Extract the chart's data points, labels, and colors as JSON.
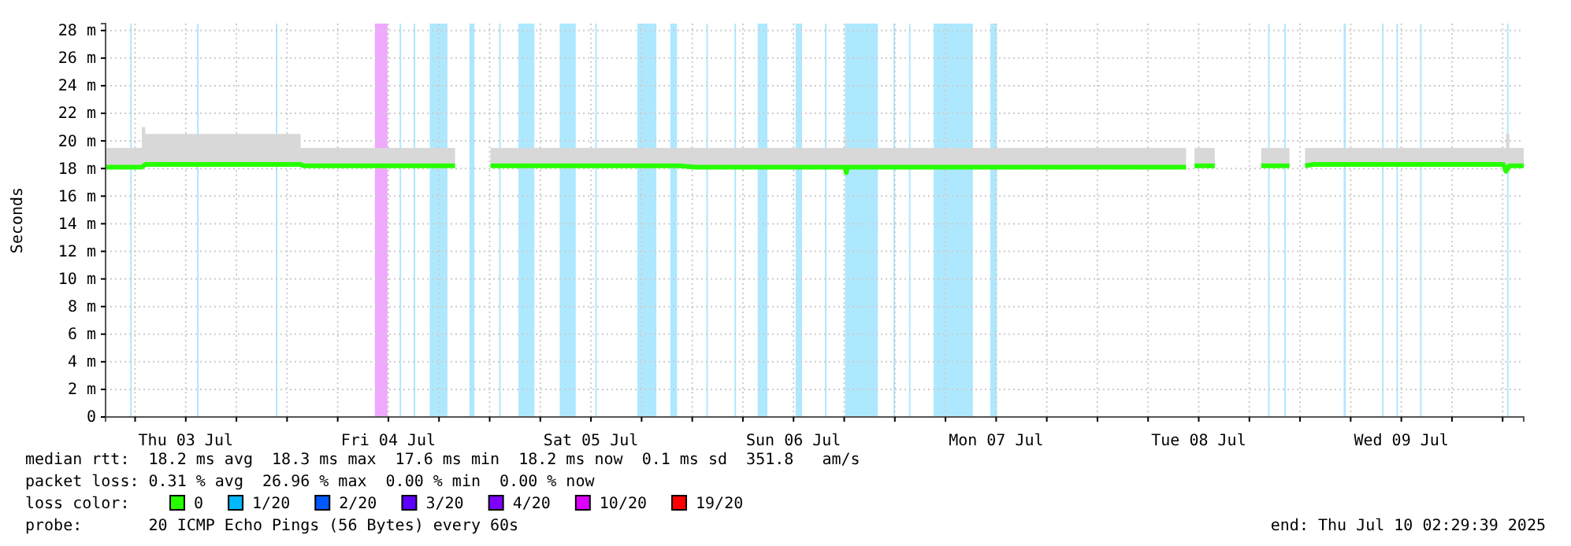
{
  "chart_data": {
    "type": "line",
    "ylabel": "Seconds",
    "xlim": [
      "2025-07-03T02:30",
      "2025-07-10T02:30"
    ],
    "xticks": [
      {
        "value": "2025-07-03T06:00",
        "label": null
      },
      {
        "value": "2025-07-03T12:00",
        "label": "Thu 03 Jul"
      },
      {
        "value": "2025-07-03T18:00",
        "label": null
      },
      {
        "value": "2025-07-04T00:00",
        "label": null
      },
      {
        "value": "2025-07-04T06:00",
        "label": null
      },
      {
        "value": "2025-07-04T12:00",
        "label": "Fri 04 Jul"
      },
      {
        "value": "2025-07-04T18:00",
        "label": null
      },
      {
        "value": "2025-07-05T00:00",
        "label": null
      },
      {
        "value": "2025-07-05T06:00",
        "label": null
      },
      {
        "value": "2025-07-05T12:00",
        "label": "Sat 05 Jul"
      },
      {
        "value": "2025-07-05T18:00",
        "label": null
      },
      {
        "value": "2025-07-06T00:00",
        "label": null
      },
      {
        "value": "2025-07-06T06:00",
        "label": null
      },
      {
        "value": "2025-07-06T12:00",
        "label": "Sun 06 Jul"
      },
      {
        "value": "2025-07-06T18:00",
        "label": null
      },
      {
        "value": "2025-07-07T00:00",
        "label": null
      },
      {
        "value": "2025-07-07T06:00",
        "label": null
      },
      {
        "value": "2025-07-07T12:00",
        "label": "Mon 07 Jul"
      },
      {
        "value": "2025-07-07T18:00",
        "label": null
      },
      {
        "value": "2025-07-08T00:00",
        "label": null
      },
      {
        "value": "2025-07-08T06:00",
        "label": null
      },
      {
        "value": "2025-07-08T12:00",
        "label": "Tue 08 Jul"
      },
      {
        "value": "2025-07-08T18:00",
        "label": null
      },
      {
        "value": "2025-07-09T00:00",
        "label": null
      },
      {
        "value": "2025-07-09T06:00",
        "label": null
      },
      {
        "value": "2025-07-09T12:00",
        "label": "Wed 09 Jul"
      },
      {
        "value": "2025-07-09T18:00",
        "label": null
      },
      {
        "value": "2025-07-10T00:00",
        "label": null
      }
    ],
    "ylim": [
      0,
      28.5
    ],
    "yticks": [
      0,
      {
        "value": 2,
        "label": "2 m"
      },
      {
        "value": 4,
        "label": "4 m"
      },
      {
        "value": 6,
        "label": "6 m"
      },
      {
        "value": 8,
        "label": "8 m"
      },
      {
        "value": 10,
        "label": "10 m"
      },
      {
        "value": 12,
        "label": "12 m"
      },
      {
        "value": 14,
        "label": "14 m"
      },
      {
        "value": 16,
        "label": "16 m"
      },
      {
        "value": 18,
        "label": "18 m"
      },
      {
        "value": 20,
        "label": "20 m"
      },
      {
        "value": 22,
        "label": "22 m"
      },
      {
        "value": 24,
        "label": "24 m"
      },
      {
        "value": 26,
        "label": "26 m"
      },
      {
        "value": 28,
        "label": "28 m"
      }
    ],
    "grid": true,
    "legend": "bottom",
    "legend_title": "loss color:",
    "x": [
      "2025-07-03T02:30",
      "2025-07-03T06:48",
      "2025-07-03T07:12",
      "2025-07-04T01:36",
      "2025-07-04T01:54",
      "2025-07-04T19:54",
      "2025-07-04T22:00",
      "2025-07-05T00:06",
      "2025-07-05T22:30",
      "2025-07-06T00:24",
      "2025-07-06T18:06",
      "2025-07-06T18:15",
      "2025-07-06T18:24",
      "2025-07-08T10:30",
      "2025-07-08T11:00",
      "2025-07-08T11:30",
      "2025-07-08T13:54",
      "2025-07-08T16:00",
      "2025-07-08T19:24",
      "2025-07-08T22:45",
      "2025-07-08T23:40",
      "2025-07-09T00:36",
      "2025-07-09T01:36",
      "2025-07-10T00:06",
      "2025-07-10T00:24",
      "2025-07-10T00:48",
      "2025-07-10T02:30"
    ],
    "series": [
      {
        "name": "0",
        "color": "#26ff00",
        "values": [
          18.1,
          18.1,
          18.3,
          18.3,
          18.2,
          18.2,
          null,
          18.2,
          18.2,
          18.1,
          18.1,
          17.7,
          18.1,
          18.1,
          null,
          18.2,
          18.2,
          null,
          18.2,
          18.2,
          null,
          18.2,
          18.3,
          18.3,
          17.8,
          18.2,
          18.2
        ],
        "lower": [
          18.1,
          18.1,
          18.3,
          18.3,
          18.2,
          18.2,
          null,
          18.2,
          18.2,
          18.1,
          18.1,
          17.7,
          18.1,
          18.1,
          null,
          18.2,
          18.2,
          null,
          18.2,
          18.2,
          null,
          18.2,
          18.3,
          18.3,
          17.8,
          18.2,
          18.2
        ],
        "upper": [
          19.5,
          21,
          20.5,
          19.5,
          19.5,
          20,
          null,
          19.5,
          19.5,
          19.5,
          20.5,
          19.5,
          19.5,
          19.5,
          null,
          19.5,
          19.5,
          null,
          19.5,
          19.5,
          null,
          19.5,
          19.5,
          19.5,
          20.5,
          19.5,
          19.5
        ]
      },
      {
        "name": "1/20",
        "color": "#00b8ff",
        "values": [
          null,
          null,
          null,
          null,
          null,
          null,
          null,
          null,
          null,
          null,
          null,
          null,
          null,
          null,
          null,
          null,
          null,
          null,
          null,
          null,
          null,
          null,
          null,
          null,
          null,
          null,
          null
        ]
      },
      {
        "name": "2/20",
        "color": "#0059ff",
        "values": [
          null,
          null,
          null,
          null,
          null,
          null,
          null,
          null,
          null,
          null,
          null,
          null,
          null,
          null,
          null,
          null,
          null,
          null,
          null,
          null,
          null,
          null,
          null,
          null,
          null,
          null,
          null
        ]
      },
      {
        "name": "3/20",
        "color": "#5e00ff",
        "values": [
          null,
          null,
          null,
          null,
          null,
          null,
          null,
          null,
          null,
          null,
          null,
          null,
          null,
          null,
          null,
          null,
          null,
          null,
          null,
          null,
          null,
          null,
          null,
          null,
          null,
          null,
          null
        ]
      },
      {
        "name": "4/20",
        "color": "#7e00ff",
        "values": [
          null,
          null,
          null,
          null,
          null,
          null,
          null,
          null,
          null,
          null,
          null,
          null,
          null,
          null,
          null,
          null,
          null,
          null,
          null,
          null,
          null,
          null,
          null,
          null,
          null,
          null,
          null
        ]
      },
      {
        "name": "10/20",
        "color": "#dd00ff",
        "values": [
          null,
          null,
          null,
          null,
          null,
          null,
          null,
          null,
          null,
          null,
          null,
          null,
          null,
          null,
          null,
          null,
          null,
          null,
          null,
          null,
          null,
          null,
          null,
          null,
          null,
          null,
          null
        ]
      },
      {
        "name": "19/20",
        "color": "#ff0000",
        "values": [
          null,
          null,
          null,
          null,
          null,
          null,
          null,
          null,
          null,
          null,
          null,
          null,
          null,
          null,
          null,
          null,
          null,
          null,
          null,
          null,
          null,
          null,
          null,
          null,
          null,
          null,
          null
        ]
      }
    ],
    "bands": [
      {
        "axis": "x",
        "from": "2025-07-03T05:25",
        "to": "2025-07-03T05:35",
        "color": "#aee8ff"
      },
      {
        "axis": "x",
        "from": "2025-07-03T13:20",
        "to": "2025-07-03T13:30",
        "color": "#aee8ff"
      },
      {
        "axis": "x",
        "from": "2025-07-03T22:40",
        "to": "2025-07-03T22:50",
        "color": "#aee8ff"
      },
      {
        "axis": "x",
        "from": "2025-07-04T10:24",
        "to": "2025-07-04T11:54",
        "color": "#f0a8ff"
      },
      {
        "axis": "x",
        "from": "2025-07-04T13:20",
        "to": "2025-07-04T13:30",
        "color": "#aee8ff"
      },
      {
        "axis": "x",
        "from": "2025-07-04T15:00",
        "to": "2025-07-04T15:10",
        "color": "#aee8ff"
      },
      {
        "axis": "x",
        "from": "2025-07-04T16:54",
        "to": "2025-07-04T19:00",
        "color": "#aee8ff"
      },
      {
        "axis": "x",
        "from": "2025-07-04T21:36",
        "to": "2025-07-04T22:12",
        "color": "#aee8ff"
      },
      {
        "axis": "x",
        "from": "2025-07-05T01:07",
        "to": "2025-07-05T01:17",
        "color": "#aee8ff"
      },
      {
        "axis": "x",
        "from": "2025-07-05T03:24",
        "to": "2025-07-05T05:18",
        "color": "#aee8ff"
      },
      {
        "axis": "x",
        "from": "2025-07-05T08:18",
        "to": "2025-07-05T10:12",
        "color": "#aee8ff"
      },
      {
        "axis": "x",
        "from": "2025-07-05T12:30",
        "to": "2025-07-05T12:40",
        "color": "#aee8ff"
      },
      {
        "axis": "x",
        "from": "2025-07-05T17:30",
        "to": "2025-07-05T19:45",
        "color": "#aee8ff"
      },
      {
        "axis": "x",
        "from": "2025-07-05T21:24",
        "to": "2025-07-05T22:12",
        "color": "#aee8ff"
      },
      {
        "axis": "x",
        "from": "2025-07-06T01:40",
        "to": "2025-07-06T01:50",
        "color": "#aee8ff"
      },
      {
        "axis": "x",
        "from": "2025-07-06T05:00",
        "to": "2025-07-06T05:10",
        "color": "#aee8ff"
      },
      {
        "axis": "x",
        "from": "2025-07-06T07:45",
        "to": "2025-07-06T08:54",
        "color": "#aee8ff"
      },
      {
        "axis": "x",
        "from": "2025-07-06T12:15",
        "to": "2025-07-06T13:00",
        "color": "#aee8ff"
      },
      {
        "axis": "x",
        "from": "2025-07-06T15:43",
        "to": "2025-07-06T15:53",
        "color": "#aee8ff"
      },
      {
        "axis": "x",
        "from": "2025-07-06T18:06",
        "to": "2025-07-06T22:00",
        "color": "#aee8ff"
      },
      {
        "axis": "x",
        "from": "2025-07-06T23:50",
        "to": "2025-07-07T00:00",
        "color": "#aee8ff"
      },
      {
        "axis": "x",
        "from": "2025-07-07T01:40",
        "to": "2025-07-07T01:50",
        "color": "#aee8ff"
      },
      {
        "axis": "x",
        "from": "2025-07-07T04:36",
        "to": "2025-07-07T09:15",
        "color": "#aee8ff"
      },
      {
        "axis": "x",
        "from": "2025-07-07T11:18",
        "to": "2025-07-07T12:06",
        "color": "#aee8ff"
      },
      {
        "axis": "x",
        "from": "2025-07-08T20:13",
        "to": "2025-07-08T20:23",
        "color": "#aee8ff"
      },
      {
        "axis": "x",
        "from": "2025-07-08T22:07",
        "to": "2025-07-08T22:17",
        "color": "#aee8ff"
      },
      {
        "axis": "x",
        "from": "2025-07-09T05:10",
        "to": "2025-07-09T05:25",
        "color": "#aee8ff"
      },
      {
        "axis": "x",
        "from": "2025-07-09T09:43",
        "to": "2025-07-09T09:53",
        "color": "#aee8ff"
      },
      {
        "axis": "x",
        "from": "2025-07-09T11:25",
        "to": "2025-07-09T11:35",
        "color": "#aee8ff"
      },
      {
        "axis": "x",
        "from": "2025-07-09T14:13",
        "to": "2025-07-09T14:23",
        "color": "#aee8ff"
      },
      {
        "axis": "x",
        "from": "2025-07-10T00:31",
        "to": "2025-07-10T00:41",
        "color": "#aee8ff"
      }
    ],
    "annotations": [
      "median rtt:  18.2 ms avg  18.3 ms max  17.6 ms min  18.2 ms now  0.1 ms sd  351.8   am/s",
      "packet loss: 0.31 % avg  26.96 % max  0.00 % min  0.00 % now",
      "probe:       20 ICMP Echo Pings (56 Bytes) every 60s",
      "end: Thu Jul 10 02:29:39 2025"
    ]
  }
}
